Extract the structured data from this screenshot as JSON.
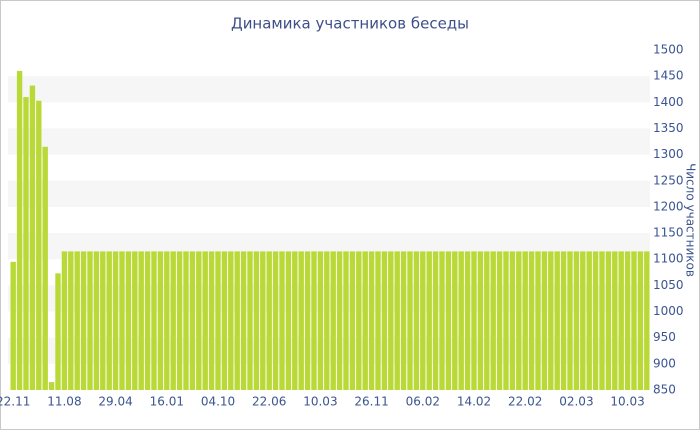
{
  "chart_data": {
    "type": "bar",
    "title": "Динамика участников беседы",
    "y_axis_label": "Число участников",
    "color": "#b8d936",
    "band_color": "#f6f6f6",
    "grid": "bands",
    "ylim": [
      850,
      1500
    ],
    "yticks": [
      850,
      900,
      950,
      1000,
      1050,
      1100,
      1150,
      1200,
      1250,
      1300,
      1350,
      1400,
      1450,
      1500
    ],
    "categories": [
      "22.11",
      null,
      null,
      null,
      null,
      null,
      null,
      null,
      "11.08",
      null,
      null,
      null,
      null,
      null,
      null,
      null,
      "29.04",
      null,
      null,
      null,
      null,
      null,
      null,
      null,
      "16.01",
      null,
      null,
      null,
      null,
      null,
      null,
      null,
      "04.10",
      null,
      null,
      null,
      null,
      null,
      null,
      null,
      "22.06",
      null,
      null,
      null,
      null,
      null,
      null,
      null,
      "10.03",
      null,
      null,
      null,
      null,
      null,
      null,
      null,
      "26.11",
      null,
      null,
      null,
      null,
      null,
      null,
      null,
      "06.02",
      null,
      null,
      null,
      null,
      null,
      null,
      null,
      "14.02",
      null,
      null,
      null,
      null,
      null,
      null,
      null,
      "22.02",
      null,
      null,
      null,
      null,
      null,
      null,
      null,
      "02.03",
      null,
      null,
      null,
      null,
      null,
      null,
      null,
      "10.03",
      null,
      null,
      null
    ],
    "values": [
      1095,
      1460,
      1410,
      1432,
      1403,
      1315,
      865,
      1073,
      1115,
      1115,
      1115,
      1115,
      1115,
      1115,
      1115,
      1115,
      1115,
      1115,
      1115,
      1115,
      1115,
      1115,
      1115,
      1115,
      1115,
      1115,
      1115,
      1115,
      1115,
      1115,
      1115,
      1115,
      1115,
      1115,
      1115,
      1115,
      1115,
      1115,
      1115,
      1115,
      1115,
      1115,
      1115,
      1115,
      1115,
      1115,
      1115,
      1115,
      1115,
      1115,
      1115,
      1115,
      1115,
      1115,
      1115,
      1115,
      1115,
      1115,
      1115,
      1115,
      1115,
      1115,
      1115,
      1115,
      1115,
      1115,
      1115,
      1115,
      1115,
      1115,
      1115,
      1115,
      1115,
      1115,
      1115,
      1115,
      1115,
      1115,
      1115,
      1115,
      1115,
      1115,
      1115,
      1115,
      1115,
      1115,
      1115,
      1115,
      1115,
      1115,
      1115,
      1115,
      1115,
      1115,
      1115,
      1115,
      1115,
      1115,
      1115,
      1115
    ]
  }
}
